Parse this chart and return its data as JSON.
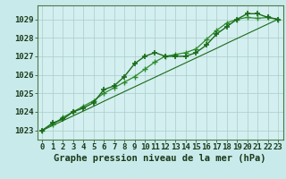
{
  "xlabel": "Graphe pression niveau de la mer (hPa)",
  "x": [
    0,
    1,
    2,
    3,
    4,
    5,
    6,
    7,
    8,
    9,
    10,
    11,
    12,
    13,
    14,
    15,
    16,
    17,
    18,
    19,
    20,
    21,
    22,
    23
  ],
  "line1": [
    1023.0,
    1023.4,
    1023.6,
    1024.0,
    1024.2,
    1024.5,
    1025.2,
    1025.4,
    1025.9,
    1026.6,
    1027.0,
    1027.2,
    1027.0,
    1027.0,
    1027.0,
    1027.2,
    1027.6,
    1028.2,
    1028.6,
    1029.0,
    1029.3,
    1029.3,
    1029.1,
    1029.0
  ],
  "line2": [
    1023.0,
    1023.3,
    1023.7,
    1024.0,
    1024.3,
    1024.6,
    1025.0,
    1025.3,
    1025.6,
    1025.9,
    1026.3,
    1026.7,
    1027.0,
    1027.1,
    1027.2,
    1027.4,
    1027.9,
    1028.4,
    1028.8,
    1029.0,
    1029.1,
    1029.05,
    1029.1,
    1029.0
  ],
  "line3": [
    1023.0,
    1023.26,
    1023.52,
    1023.78,
    1024.04,
    1024.3,
    1024.57,
    1024.83,
    1025.09,
    1025.35,
    1025.61,
    1025.87,
    1026.13,
    1026.39,
    1026.65,
    1026.91,
    1027.17,
    1027.43,
    1027.7,
    1027.96,
    1028.22,
    1028.48,
    1028.74,
    1029.0
  ],
  "line_color1": "#1a6b1a",
  "line_color2": "#2d8b2d",
  "line_color3": "#1a6b1a",
  "bg_color": "#c8eaea",
  "plot_bg_color": "#d4efef",
  "grid_color": "#aacccc",
  "ylim": [
    1022.5,
    1029.75
  ],
  "yticks": [
    1023,
    1024,
    1025,
    1026,
    1027,
    1028,
    1029
  ],
  "xticks": [
    0,
    1,
    2,
    3,
    4,
    5,
    6,
    7,
    8,
    9,
    10,
    11,
    12,
    13,
    14,
    15,
    16,
    17,
    18,
    19,
    20,
    21,
    22,
    23
  ],
  "xlabel_fontsize": 7.5,
  "tick_fontsize": 6.5,
  "marker": "+",
  "marker_size": 4.5,
  "lw1": 1.0,
  "lw2": 0.9,
  "lw3": 0.8
}
